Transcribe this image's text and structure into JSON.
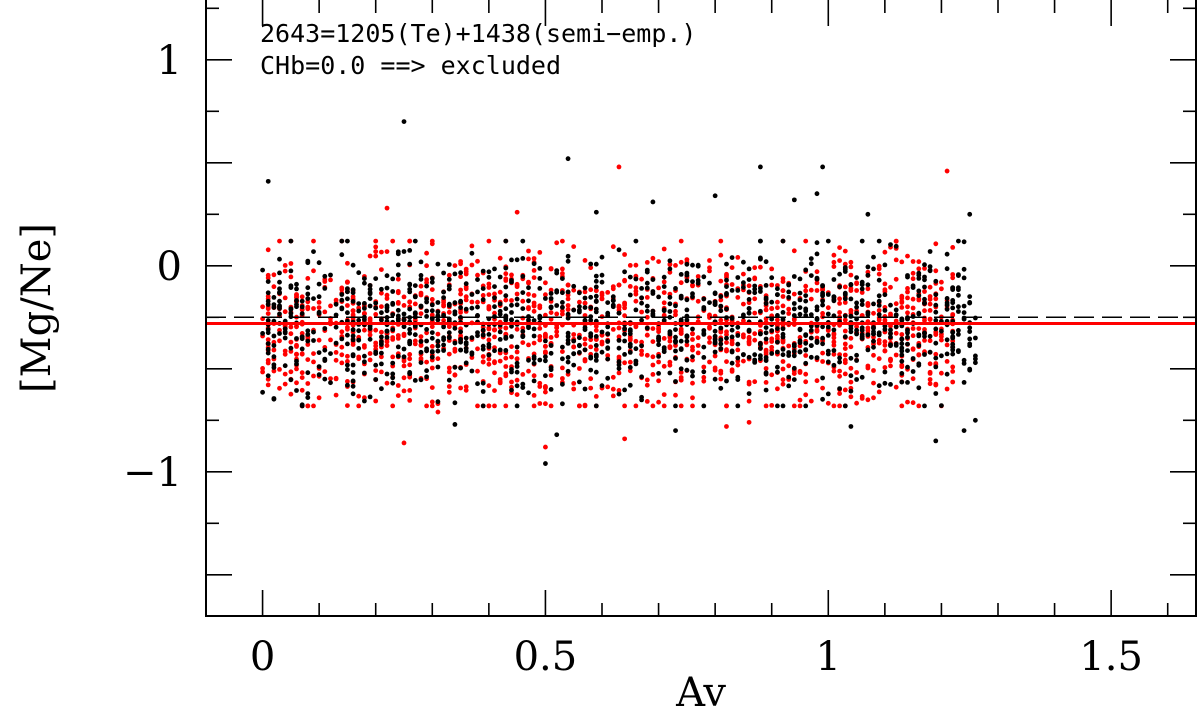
{
  "chart_data": {
    "type": "scatter",
    "xlabel": "Av",
    "ylabel": "[Mg/Ne]",
    "xlim": [
      -0.1,
      1.65
    ],
    "ylim": [
      -1.7,
      1.3
    ],
    "x_ticks": [
      {
        "v": 0,
        "label": "0"
      },
      {
        "v": 0.5,
        "label": "0.5"
      },
      {
        "v": 1,
        "label": "1"
      },
      {
        "v": 1.5,
        "label": "1.5"
      }
    ],
    "y_ticks": [
      {
        "v": 1,
        "label": "1"
      },
      {
        "v": 0,
        "label": "0"
      },
      {
        "v": -1,
        "label": "−1"
      }
    ],
    "annotations": [
      "2643=1205(Te)+1438(semi−emp.)",
      "CHb=0.0 ==> excluded"
    ],
    "series": [
      {
        "color": "#000000",
        "count": 1205,
        "x_range": [
          0.0,
          1.26
        ],
        "y_center": -0.28,
        "y_spread": 0.17
      },
      {
        "color": "#ff0000",
        "count": 1438,
        "x_range": [
          0.0,
          1.22
        ],
        "y_center": -0.3,
        "y_spread": 0.19
      }
    ],
    "outliers": [
      {
        "x": 0.01,
        "y": 0.41,
        "color": "#000000"
      },
      {
        "x": 0.25,
        "y": 0.7,
        "color": "#000000"
      },
      {
        "x": 0.54,
        "y": 0.52,
        "color": "#000000"
      },
      {
        "x": 0.63,
        "y": 0.48,
        "color": "#ff0000"
      },
      {
        "x": 0.88,
        "y": 0.48,
        "color": "#000000"
      },
      {
        "x": 0.99,
        "y": 0.48,
        "color": "#000000"
      },
      {
        "x": 1.21,
        "y": 0.46,
        "color": "#ff0000"
      },
      {
        "x": 0.8,
        "y": 0.34,
        "color": "#000000"
      },
      {
        "x": 0.98,
        "y": 0.35,
        "color": "#000000"
      },
      {
        "x": 0.94,
        "y": 0.32,
        "color": "#000000"
      },
      {
        "x": 0.69,
        "y": 0.31,
        "color": "#000000"
      },
      {
        "x": 0.22,
        "y": 0.28,
        "color": "#ff0000"
      },
      {
        "x": 0.45,
        "y": 0.26,
        "color": "#ff0000"
      },
      {
        "x": 0.59,
        "y": 0.26,
        "color": "#000000"
      },
      {
        "x": 1.25,
        "y": 0.25,
        "color": "#000000"
      },
      {
        "x": 1.07,
        "y": 0.25,
        "color": "#000000"
      },
      {
        "x": 0.5,
        "y": -0.96,
        "color": "#000000"
      },
      {
        "x": 0.5,
        "y": -0.88,
        "color": "#ff0000"
      },
      {
        "x": 0.25,
        "y": -0.86,
        "color": "#ff0000"
      },
      {
        "x": 0.64,
        "y": -0.84,
        "color": "#ff0000"
      },
      {
        "x": 1.19,
        "y": -0.85,
        "color": "#000000"
      },
      {
        "x": 1.24,
        "y": -0.8,
        "color": "#000000"
      },
      {
        "x": 1.26,
        "y": -0.75,
        "color": "#000000"
      },
      {
        "x": 1.04,
        "y": -0.78,
        "color": "#000000"
      },
      {
        "x": 0.82,
        "y": -0.78,
        "color": "#ff0000"
      },
      {
        "x": 0.73,
        "y": -0.8,
        "color": "#000000"
      },
      {
        "x": 0.52,
        "y": -0.82,
        "color": "#000000"
      },
      {
        "x": 0.34,
        "y": -0.77,
        "color": "#000000"
      },
      {
        "x": 0.31,
        "y": -0.71,
        "color": "#ff0000"
      },
      {
        "x": 0.86,
        "y": -0.76,
        "color": "#ff0000"
      }
    ],
    "reference_lines": [
      {
        "style": "dashed",
        "color": "#000000",
        "y": -0.25
      },
      {
        "style": "solid",
        "color": "#ff0000",
        "y": -0.28
      }
    ],
    "grid": false,
    "legend": "none"
  }
}
